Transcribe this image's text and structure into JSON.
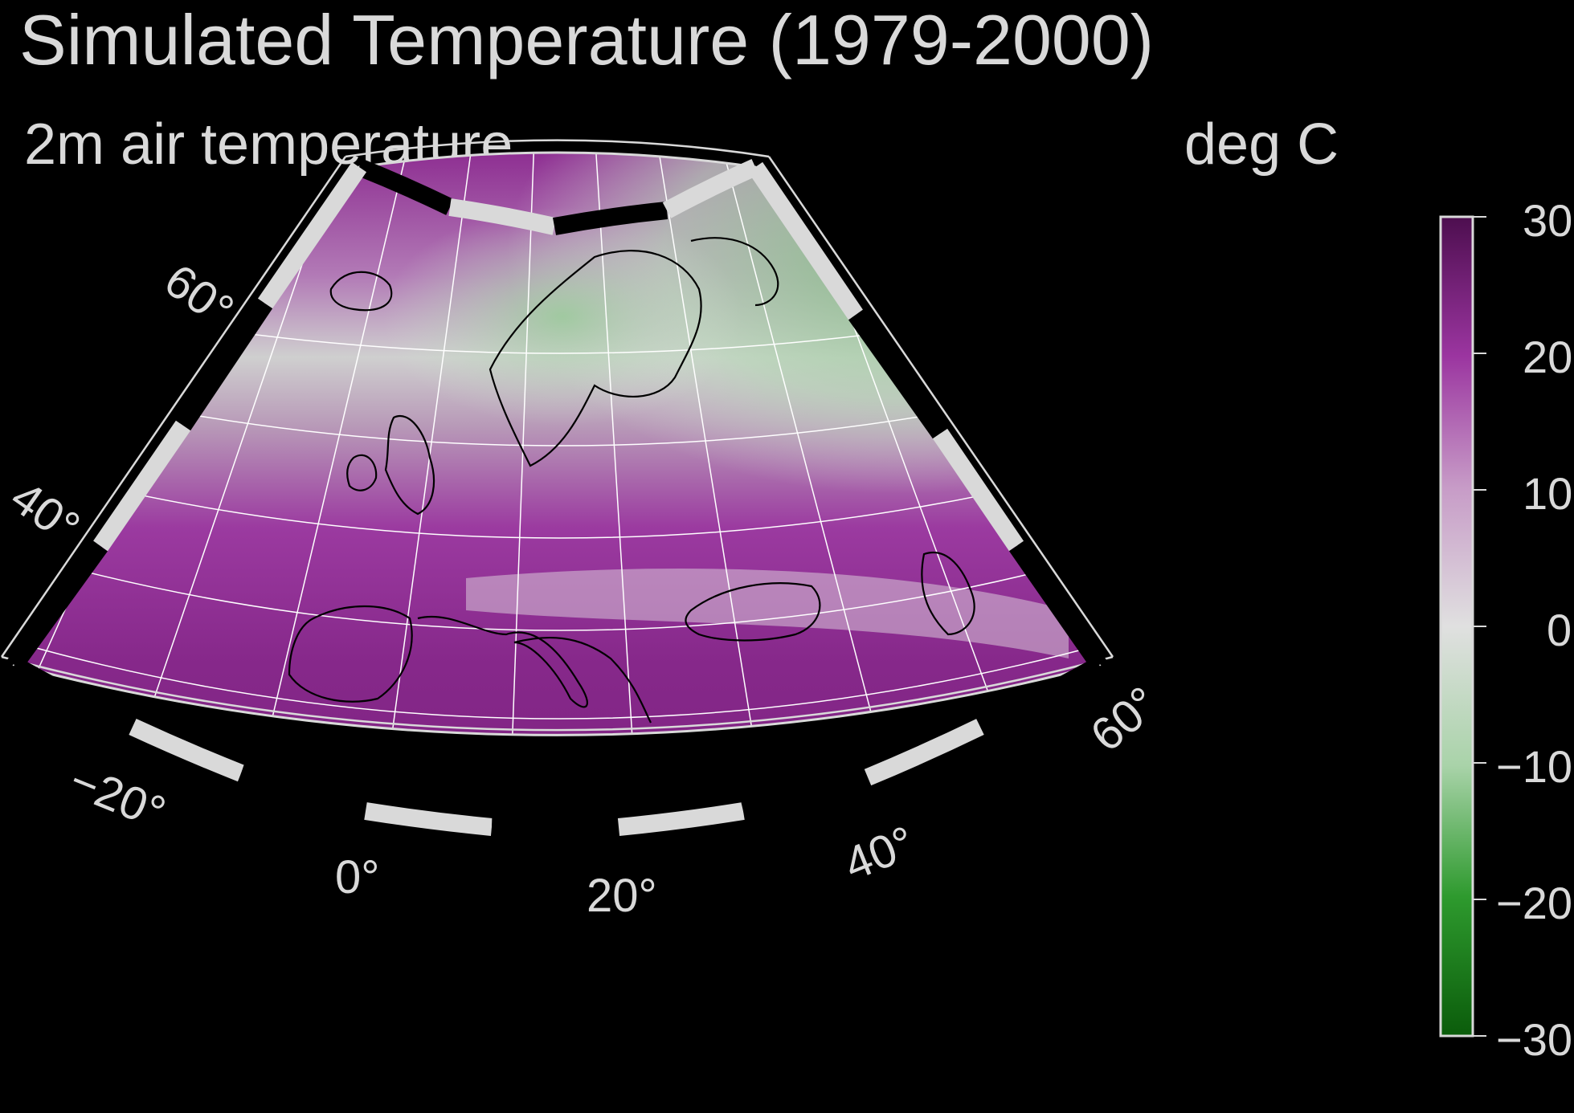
{
  "title": "Simulated Temperature (1979-2000)",
  "subtitle": "2m air temperature",
  "units": "deg C",
  "map": {
    "lat_labels": [
      "60°",
      "40°"
    ],
    "lon_labels": [
      "−20°",
      "0°",
      "20°",
      "40°",
      "60°"
    ],
    "colors": {
      "frame_light": "#d9d9d9",
      "frame_dark": "#000000",
      "gridline": "#ffffff",
      "coastline": "#000000"
    }
  },
  "colorbar": {
    "ticks": [
      "30",
      "20",
      "10",
      "0",
      "−10",
      "−20",
      "−30"
    ],
    "range": [
      -30,
      30
    ],
    "colormap": [
      "#0b5c0b",
      "#2e9a2e",
      "#a9d3a9",
      "#e0e0e0",
      "#c79bc7",
      "#9b35a0",
      "#4d0e4f"
    ]
  }
}
